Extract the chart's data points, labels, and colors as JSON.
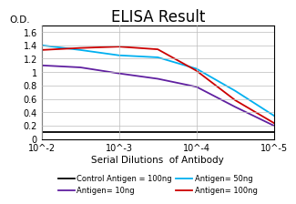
{
  "title": "ELISA Result",
  "ylabel": "O.D.",
  "xlabel": "Serial Dilutions  of Antibody",
  "xlim": [
    -2,
    -5
  ],
  "ylim": [
    0,
    1.7
  ],
  "yticks": [
    0,
    0.2,
    0.4,
    0.6,
    0.8,
    1.0,
    1.2,
    1.4,
    1.6
  ],
  "ytick_labels": [
    "0",
    "0.2",
    "0.4",
    "0.6",
    "0.8",
    "1",
    "1.2",
    "1.4",
    "1.6"
  ],
  "xtick_positions": [
    -2,
    -3,
    -4,
    -5
  ],
  "xtick_labels": [
    "10^-2",
    "10^-3",
    "10^-4",
    "10^-5"
  ],
  "lines": [
    {
      "label": "Control Antigen = 100ng",
      "color": "#000000",
      "x": [
        -2,
        -2.5,
        -3,
        -3.5,
        -4,
        -4.5,
        -5
      ],
      "y": [
        0.1,
        0.1,
        0.1,
        0.1,
        0.1,
        0.1,
        0.1
      ]
    },
    {
      "label": "Antigen= 10ng",
      "color": "#6020a0",
      "x": [
        -2,
        -2.5,
        -3,
        -3.5,
        -4,
        -4.5,
        -5
      ],
      "y": [
        1.1,
        1.07,
        0.98,
        0.9,
        0.78,
        0.48,
        0.2
      ]
    },
    {
      "label": "Antigen= 50ng",
      "color": "#00b0f0",
      "x": [
        -2,
        -2.5,
        -3,
        -3.5,
        -4,
        -4.5,
        -5
      ],
      "y": [
        1.4,
        1.33,
        1.25,
        1.22,
        1.05,
        0.72,
        0.35
      ]
    },
    {
      "label": "Antigen= 100ng",
      "color": "#cc0000",
      "x": [
        -2,
        -2.5,
        -3,
        -3.5,
        -4,
        -4.5,
        -5
      ],
      "y": [
        1.33,
        1.36,
        1.38,
        1.34,
        1.02,
        0.58,
        0.24
      ]
    }
  ],
  "title_fontsize": 12,
  "axis_label_fontsize": 7.5,
  "tick_fontsize": 7,
  "legend_fontsize": 6,
  "background_color": "#ffffff",
  "grid_color": "#bbbbbb"
}
